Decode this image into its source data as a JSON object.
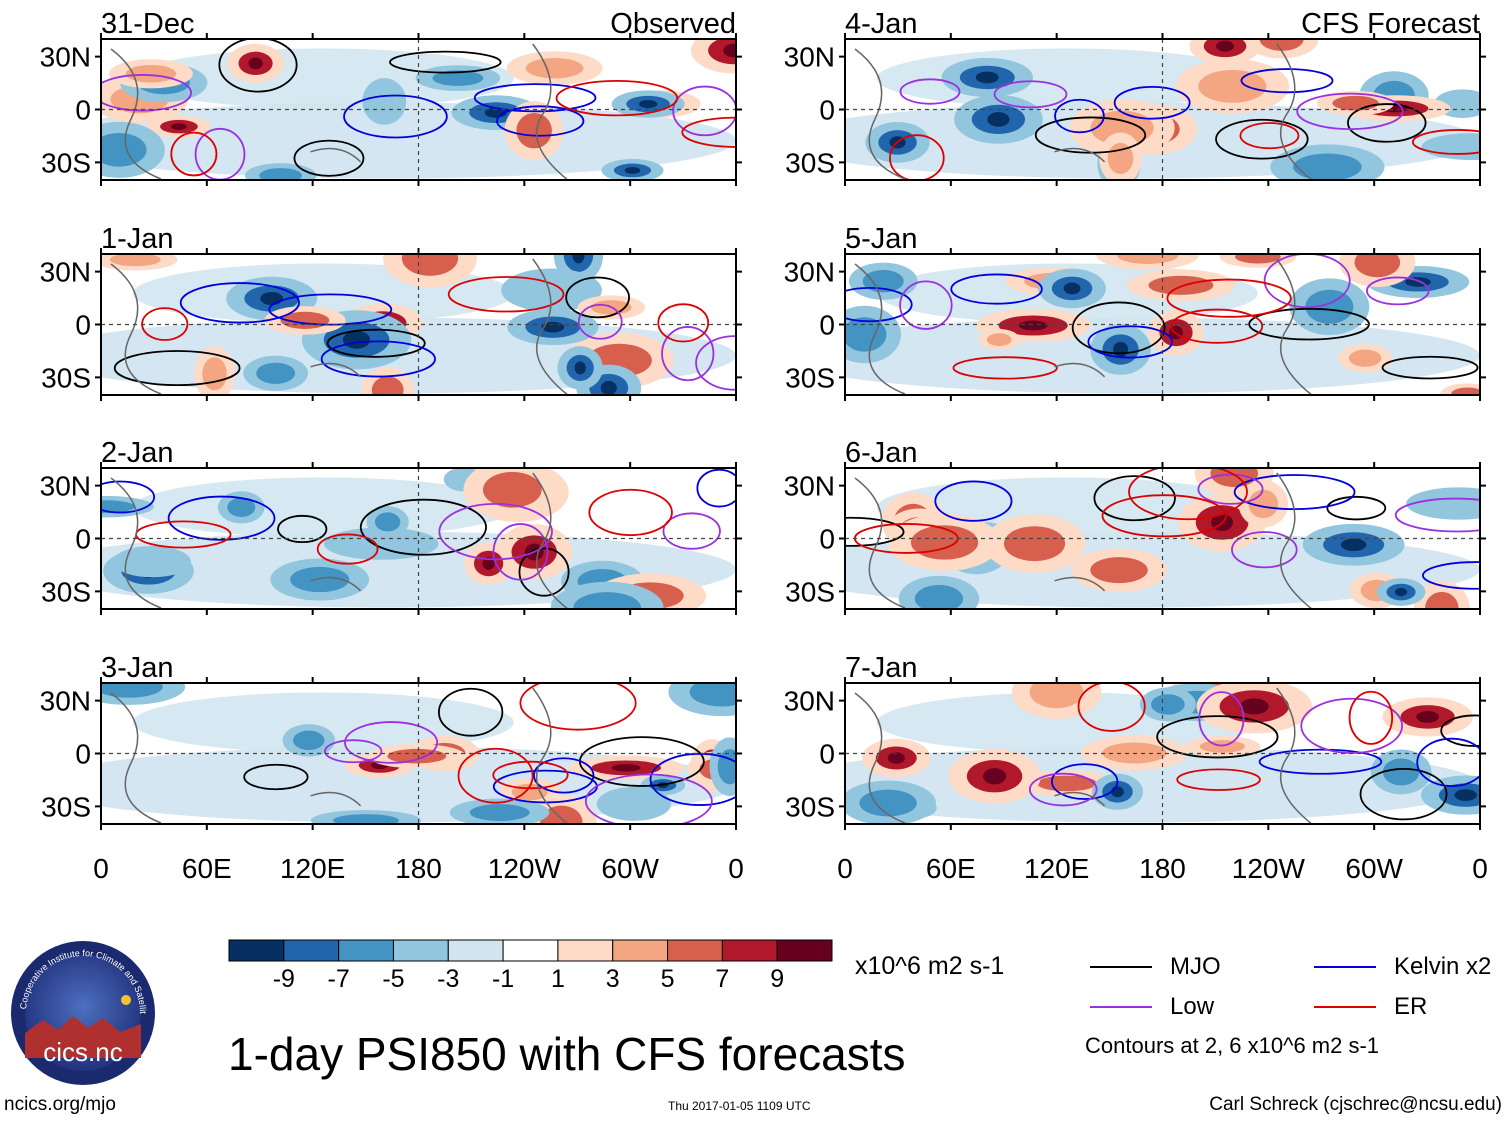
{
  "chart_data": {
    "type": "heatmap",
    "title": "1-day PSI850 with CFS forecasts",
    "variable": "PSI850 anomaly",
    "units": "x10^6 m2 s-1",
    "x_ticks": [
      "0",
      "60E",
      "120E",
      "180",
      "120W",
      "60W",
      "0"
    ],
    "y_ticks": [
      "30N",
      "0",
      "30S"
    ],
    "columns": [
      {
        "label": "Observed",
        "panels": [
          {
            "date": "31-Dec",
            "corner": "Observed"
          },
          {
            "date": "1-Jan",
            "corner": ""
          },
          {
            "date": "2-Jan",
            "corner": ""
          },
          {
            "date": "3-Jan",
            "corner": ""
          }
        ]
      },
      {
        "label": "CFS Forecast",
        "panels": [
          {
            "date": "4-Jan",
            "corner": "CFS Forecast"
          },
          {
            "date": "5-Jan",
            "corner": ""
          },
          {
            "date": "6-Jan",
            "corner": ""
          },
          {
            "date": "7-Jan",
            "corner": ""
          }
        ]
      }
    ],
    "colorbar": {
      "colors": [
        "#053061",
        "#2166ac",
        "#4393c3",
        "#92c5de",
        "#d1e5f0",
        "#ffffff",
        "#fddbc7",
        "#f4a582",
        "#d6604d",
        "#b2182b",
        "#67001f"
      ],
      "labels": [
        "-9",
        "-7",
        "-5",
        "-3",
        "-1",
        "1",
        "3",
        "5",
        "7",
        "9"
      ]
    },
    "contour_legend": [
      {
        "label": "MJO",
        "color": "#000000"
      },
      {
        "label": "Kelvin x2",
        "color": "#0000dd"
      },
      {
        "label": "Low",
        "color": "#9a30e0"
      },
      {
        "label": "ER",
        "color": "#dd0000"
      }
    ],
    "contour_note": "Contours at 2, 6 x10^6 m2 s-1"
  },
  "footer": {
    "left": "ncics.org/mjo",
    "center": "Thu 2017-01-05 1109 UTC",
    "right": "Carl Schreck (cjschrec@ncsu.edu)"
  },
  "logo": {
    "ring_text": "Cooperative Institute for Climate and Satellites",
    "name": "cics.nc"
  }
}
